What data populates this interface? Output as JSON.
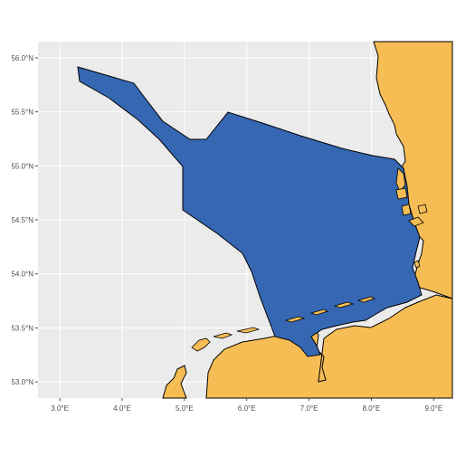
{
  "map": {
    "x_axis": {
      "ticks": [
        {
          "value": 3,
          "label": "3.0°E"
        },
        {
          "value": 4,
          "label": "4.0°E"
        },
        {
          "value": 5,
          "label": "5.0°E"
        },
        {
          "value": 6,
          "label": "6.0°E"
        },
        {
          "value": 7,
          "label": "7.0°E"
        },
        {
          "value": 8,
          "label": "8.0°E"
        },
        {
          "value": 9,
          "label": "9.0°E"
        }
      ],
      "range": [
        2.65,
        9.3
      ]
    },
    "y_axis": {
      "ticks": [
        {
          "value": 53.0,
          "label": "53.0°N"
        },
        {
          "value": 53.5,
          "label": "53.5°N"
        },
        {
          "value": 54.0,
          "label": "54.0°N"
        },
        {
          "value": 54.5,
          "label": "54.5°N"
        },
        {
          "value": 55.0,
          "label": "55.0°N"
        },
        {
          "value": 55.5,
          "label": "55.5°N"
        },
        {
          "value": 56.0,
          "label": "56.0°N"
        }
      ],
      "range": [
        52.85,
        56.15
      ]
    },
    "grid": true,
    "colors": {
      "panel_background": "#ebebeb",
      "grid_line": "#ffffff",
      "land_fill": "#f6bd55",
      "sea_region_fill": "#3567b3",
      "outline": "#000000"
    }
  }
}
